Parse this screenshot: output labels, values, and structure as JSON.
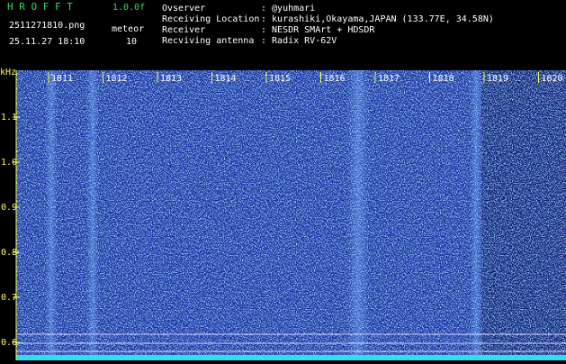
{
  "header": {
    "title": "H R O F F T",
    "version": "1.0.0f",
    "filename": "2511271810.png",
    "mode": "meteor",
    "datetime": "25.11.27 18:10",
    "count": "10",
    "info": [
      {
        "label": "Ovserver",
        "value": ": @yuhmari"
      },
      {
        "label": "Receiving Location",
        "value": ": kurashiki,Okayama,JAPAN (133.77E, 34.58N)"
      },
      {
        "label": "Receiver",
        "value": ": NESDR SMArt + HDSDR"
      },
      {
        "label": "Recviving antenna",
        "value": ": Radix RV-62V"
      }
    ]
  },
  "spectrogram": {
    "unit": "kHz",
    "x_labels": [
      "1811",
      "1812",
      "1813",
      "1814",
      "1815",
      "1816",
      "1817",
      "1818",
      "1819",
      "1820"
    ],
    "y_labels": [
      "1.1",
      "1.0",
      "0.9",
      "0.8",
      "0.7",
      "0.6"
    ]
  }
}
